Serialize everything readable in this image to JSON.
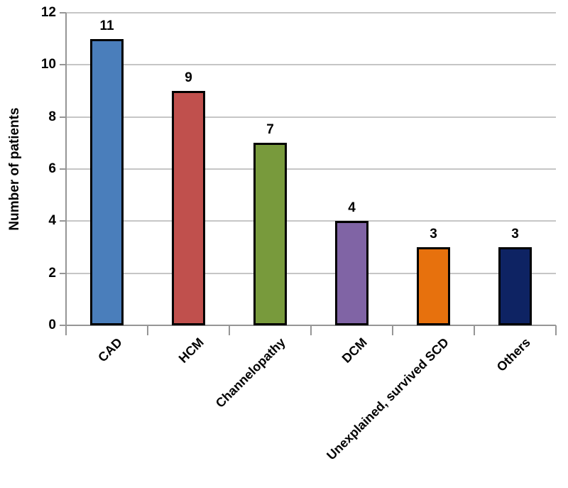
{
  "chart_data": {
    "type": "bar",
    "title": "",
    "ylabel": "Number of patients",
    "xlabel": "",
    "categories": [
      "CAD",
      "HCM",
      "Channelopathy",
      "DCM",
      "Unexplained, survived SCD",
      "Others"
    ],
    "values": [
      11,
      9,
      7,
      4,
      3,
      3
    ],
    "value_labels": [
      "11",
      "9",
      "7",
      "4",
      "3",
      "3"
    ],
    "series": [
      {
        "name": "Number of patients",
        "values": [
          11,
          9,
          7,
          4,
          3,
          3
        ]
      }
    ],
    "ylim": [
      0,
      12
    ],
    "yticks": [
      0,
      2,
      4,
      6,
      8,
      10,
      12
    ],
    "ytick_step": 2,
    "grid": "horizontal gridlines on",
    "legend": "none",
    "x_label_rotation_deg": 45,
    "bar_colors": [
      "#4A7EBB",
      "#C0504D",
      "#789A3C",
      "#8064A5",
      "#E7710D",
      "#0E2363"
    ],
    "colors": {
      "bar_border": "#000000",
      "gridline": "#C6C6C6",
      "axis": "#969696",
      "text": "#000000",
      "background": "#FFFFFF"
    }
  }
}
